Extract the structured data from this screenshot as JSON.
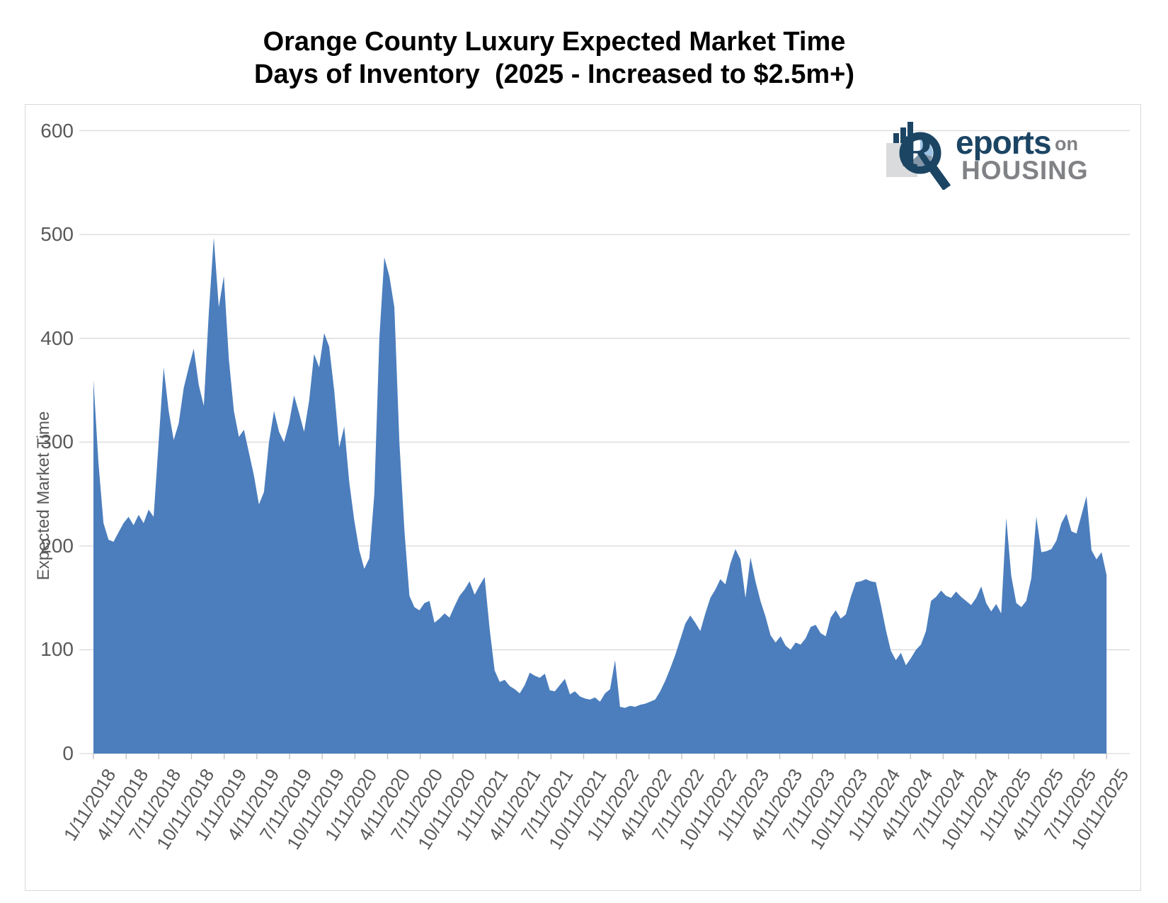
{
  "title": {
    "line1": "Orange County Luxury Expected Market Time",
    "line2": "Days of Inventory  (2025 - Increased to $2.5m+)"
  },
  "y_axis": {
    "title": "Expected Market Time",
    "ticks": [
      600,
      500,
      400,
      300,
      200,
      100,
      0
    ]
  },
  "logo": {
    "word1": "eports",
    "word2": "on",
    "word3": "HOUSING",
    "icon": "reports-on-housing-logo"
  },
  "colors": {
    "area": "#4C7EBD",
    "gridline": "#D9D9D9",
    "border": "#D9D9D9",
    "tick": "#BFBFBF",
    "axis_text": "#595959",
    "title_text": "#000000",
    "logo_navy": "#1C4564",
    "logo_gray": "#808285",
    "logo_light_gray": "#D9DBDD",
    "logo_pie_blue": "#9DC3E6"
  },
  "chart_data": {
    "type": "area",
    "title": "Orange County Luxury Expected Market Time — Days of Inventory (2025 - Increased to $2.5m+)",
    "ylabel": "Expected Market Time",
    "xlabel": "",
    "ylim": [
      0,
      600
    ],
    "grid": true,
    "legend": false,
    "series_name": "Expected Market Time (days)",
    "x_start_date": "1/11/2018",
    "x_interval_days": 14,
    "x_tick_labels": [
      "1/11/2018",
      "4/11/2018",
      "7/11/2018",
      "10/11/2018",
      "1/11/2019",
      "4/11/2019",
      "7/11/2019",
      "10/11/2019",
      "1/11/2020",
      "4/11/2020",
      "7/11/2020",
      "10/11/2020",
      "1/11/2021",
      "4/11/2021",
      "7/11/2021",
      "10/11/2021",
      "1/11/2022",
      "4/11/2022",
      "7/11/2022",
      "10/11/2022",
      "1/11/2023",
      "4/11/2023",
      "7/11/2023",
      "10/11/2023",
      "1/11/2024",
      "4/11/2024",
      "7/11/2024",
      "10/11/2024",
      "1/11/2025",
      "4/11/2025",
      "7/11/2025",
      "10/11/2025"
    ],
    "values": [
      360,
      280,
      222,
      206,
      204,
      213,
      222,
      228,
      220,
      230,
      222,
      235,
      228,
      300,
      372,
      330,
      302,
      318,
      352,
      372,
      390,
      355,
      335,
      425,
      497,
      430,
      460,
      380,
      330,
      305,
      312,
      290,
      268,
      240,
      252,
      300,
      330,
      310,
      300,
      318,
      345,
      328,
      310,
      340,
      385,
      372,
      405,
      392,
      350,
      295,
      315,
      262,
      225,
      196,
      178,
      188,
      250,
      400,
      478,
      460,
      430,
      300,
      215,
      152,
      141,
      138,
      145,
      147,
      126,
      130,
      135,
      131,
      142,
      152,
      158,
      166,
      153,
      162,
      170,
      120,
      80,
      69,
      71,
      65,
      62,
      58,
      66,
      78,
      75,
      73,
      77,
      61,
      60,
      66,
      72,
      57,
      60,
      55,
      53,
      52,
      54,
      50,
      58,
      62,
      90,
      45,
      44,
      46,
      45,
      47,
      48,
      50,
      52,
      60,
      70,
      82,
      95,
      110,
      125,
      133,
      126,
      118,
      135,
      150,
      158,
      168,
      163,
      183,
      197,
      187,
      150,
      189,
      166,
      147,
      132,
      114,
      107,
      113,
      104,
      100,
      107,
      105,
      111,
      122,
      124,
      116,
      113,
      131,
      138,
      130,
      134,
      151,
      165,
      166,
      168,
      166,
      165,
      143,
      119,
      99,
      90,
      97,
      85,
      92,
      100,
      105,
      118,
      147,
      151,
      157,
      152,
      150,
      156,
      151,
      147,
      143,
      150,
      161,
      145,
      137,
      144,
      135,
      227,
      171,
      145,
      141,
      147,
      169,
      228,
      194,
      195,
      197,
      205,
      222,
      231,
      214,
      212,
      230,
      248,
      196,
      187,
      194,
      172
    ]
  }
}
